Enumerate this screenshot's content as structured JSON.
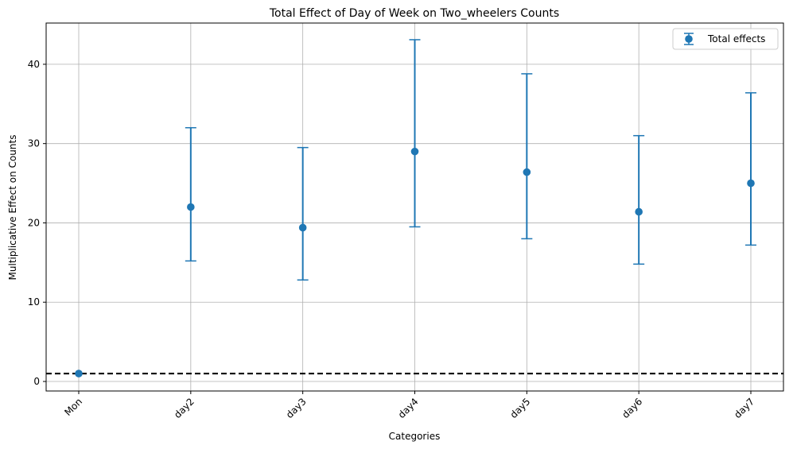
{
  "chart_data": {
    "type": "scatter",
    "title": "Total Effect of Day of Week on Two_wheelers Counts",
    "xlabel": "Categories",
    "ylabel": "Multiplicative Effect on Counts",
    "categories": [
      "Mon",
      "day2",
      "day3",
      "day4",
      "day5",
      "day6",
      "day7"
    ],
    "ylim": [
      -1.2,
      45.2
    ],
    "yticks": [
      0,
      10,
      20,
      30,
      40
    ],
    "grid": true,
    "legend_position": "top-right",
    "reference_line": {
      "y": 1,
      "style": "dashed",
      "color": "#000000"
    },
    "series": [
      {
        "name": "Total effects",
        "color": "#1f77b4",
        "values": [
          1.0,
          22.0,
          19.4,
          29.0,
          26.4,
          21.4,
          25.0
        ],
        "lower": [
          1.0,
          15.2,
          12.8,
          19.5,
          18.0,
          14.8,
          17.2
        ],
        "upper": [
          1.0,
          32.0,
          29.5,
          43.1,
          38.8,
          31.0,
          36.4
        ]
      }
    ]
  }
}
